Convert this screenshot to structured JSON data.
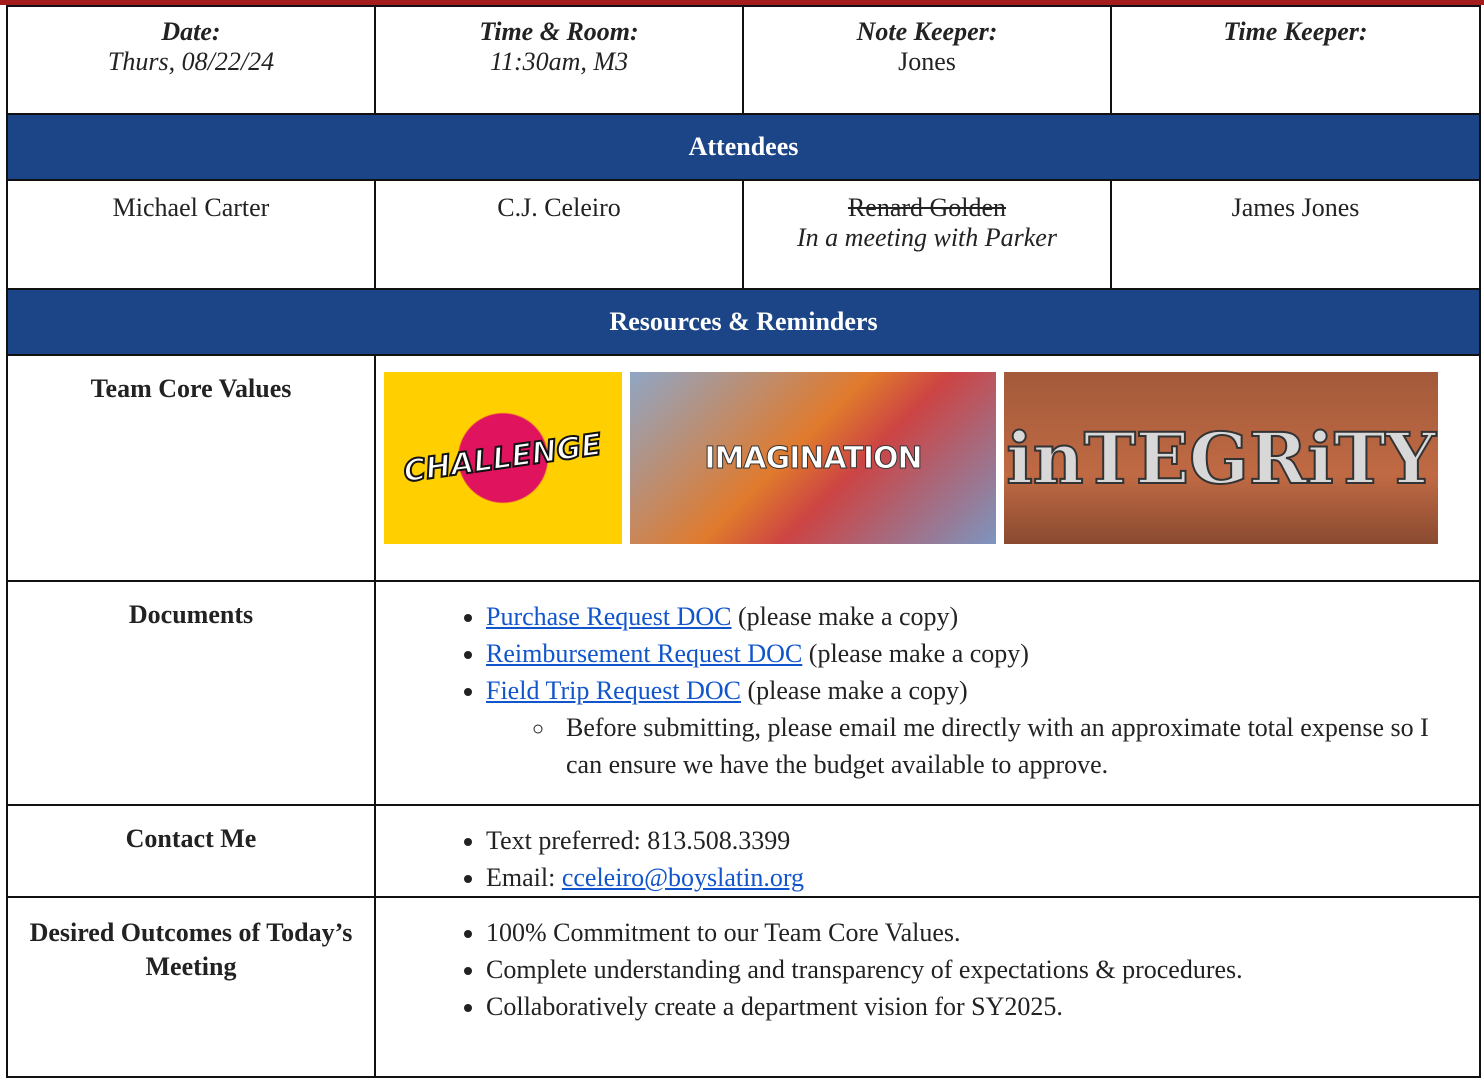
{
  "header": {
    "cells": [
      {
        "label": "Date:",
        "value": "Thurs, 08/22/24"
      },
      {
        "label": "Time & Room:",
        "value": "11:30am, M3"
      },
      {
        "label": "Note Keeper:",
        "value": "Jones"
      },
      {
        "label": "Time Keeper:"
      }
    ]
  },
  "attendees": {
    "title": "Attendees",
    "people": [
      {
        "name": "Michael Carter"
      },
      {
        "name": "C.J. Celeiro"
      },
      {
        "name": "Renard Golden",
        "note": "In a meeting with Parker"
      },
      {
        "name": "James Jones"
      }
    ]
  },
  "resources": {
    "title": "Resources & Reminders",
    "core_values": {
      "label": "Team Core Values",
      "images": [
        {
          "label": "CHALLENGE"
        },
        {
          "label": "IMAGINATION"
        },
        {
          "label": "inTEGRiTY"
        }
      ]
    },
    "documents": {
      "label": "Documents",
      "items": [
        {
          "link": "Purchase Request DOC",
          "text": "(please make a copy)"
        },
        {
          "link": "Reimbursement Request DOC",
          "text": "(please make a copy)"
        },
        {
          "link": "Field Trip Request DOC",
          "text": "(please make a copy)",
          "sub": "Before submitting, please email me directly with an approximate total expense so I can ensure we have the budget available to approve."
        }
      ]
    },
    "contact": {
      "label": "Contact Me",
      "phone": "Text preferred: 813.508.3399",
      "email_label": "Email:",
      "email": "cceleiro@boyslatin.org"
    },
    "outcomes": {
      "label": "Desired Outcomes of Today’s Meeting",
      "items": [
        "100% Commitment to our Team Core Values.",
        "Complete understanding and transparency of expectations & procedures.",
        "Collaboratively create a department vision for SY2025."
      ]
    }
  }
}
